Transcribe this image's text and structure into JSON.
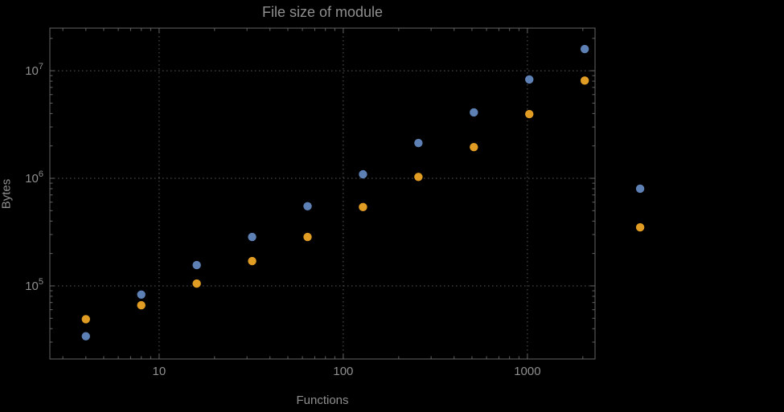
{
  "chart_data": {
    "type": "scatter",
    "title": "File size of module",
    "xlabel": "Functions",
    "ylabel": "Bytes",
    "xscale": "log",
    "yscale": "log",
    "xlim": [
      2.55,
      2330
    ],
    "ylim": [
      20900,
      24900000
    ],
    "grid": "dotted",
    "legend": "none",
    "x_ticks": [
      10,
      100,
      1000
    ],
    "x_tick_labels": [
      "10",
      "100",
      "1000"
    ],
    "y_ticks": [
      100000,
      1000000,
      10000000
    ],
    "y_tick_label_base": "10",
    "y_tick_label_exponents": [
      "5",
      "6",
      "7"
    ],
    "colors": {
      "background": "#000000",
      "text": "#8f8f8f",
      "frame": "#636363",
      "grid": "#5a5a5a",
      "series1": "#5e81b5",
      "series2": "#e19c24"
    },
    "series": [
      {
        "name": "series-blue",
        "color": "#5e81b5",
        "points": [
          [
            4,
            34000
          ],
          [
            8,
            83000
          ],
          [
            16,
            156000
          ],
          [
            32,
            285000
          ],
          [
            64,
            550000
          ],
          [
            128,
            1090000
          ],
          [
            256,
            2130000
          ],
          [
            512,
            4100000
          ],
          [
            1024,
            8300000
          ],
          [
            2048,
            15900000
          ],
          [
            4096,
            800000
          ]
        ]
      },
      {
        "name": "series-orange",
        "color": "#e19c24",
        "points": [
          [
            4,
            49000
          ],
          [
            8,
            66000
          ],
          [
            16,
            105000
          ],
          [
            32,
            170000
          ],
          [
            64,
            285000
          ],
          [
            128,
            540000
          ],
          [
            256,
            1030000
          ],
          [
            512,
            1950000
          ],
          [
            1024,
            3950000
          ],
          [
            2048,
            8100000
          ],
          [
            4096,
            350000
          ]
        ]
      }
    ]
  }
}
